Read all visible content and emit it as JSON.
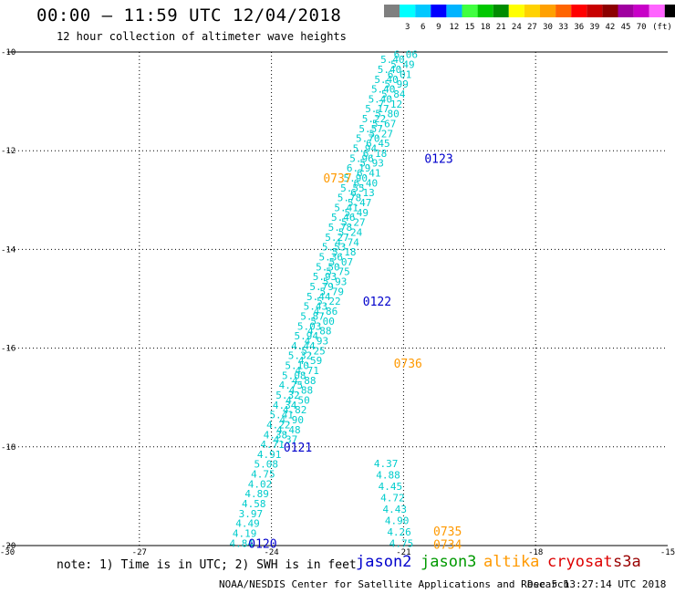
{
  "header": {
    "title": "00:00 – 11:59 UTC 12/04/2018",
    "subtitle": "12 hour collection of altimeter wave heights"
  },
  "colorbar": {
    "unit_label": "(ft)",
    "colors": [
      "#7f7f7f",
      "#00ffff",
      "#00c8ff",
      "#0000ff",
      "#00b4ff",
      "#40ff40",
      "#00c800",
      "#008c00",
      "#ffff00",
      "#ffd200",
      "#ffa000",
      "#ff6400",
      "#ff0000",
      "#c80000",
      "#8c0000",
      "#a000a0",
      "#c800c8",
      "#ff64ff",
      "#000000"
    ],
    "labels": [
      "3",
      "6",
      "9",
      "12",
      "15",
      "18",
      "21",
      "24",
      "27",
      "30",
      "33",
      "36",
      "39",
      "42",
      "45",
      "70"
    ]
  },
  "footer": {
    "note": "note: 1) Time is in UTC; 2) SWH is in feet",
    "credit": "NOAA/NESDIS Center for Satellite Applications and Research",
    "timestamp": "Dec  5 13:27:14 UTC 2018"
  },
  "legend": [
    {
      "name": "jason2",
      "color": "#0000cc"
    },
    {
      "name": "jason3",
      "color": "#009900"
    },
    {
      "name": "altika",
      "color": "#ff9900"
    },
    {
      "name": "cryosat",
      "color": "#dd0000"
    },
    {
      "name": "s3a",
      "color": "#990000"
    }
  ],
  "chart_data": {
    "type": "scatter",
    "title": "00:00 – 11:59 UTC 12/04/2018",
    "subtitle": "12 hour collection of altimeter wave heights",
    "xlim": [
      -30,
      -15
    ],
    "ylim": [
      -20,
      -10
    ],
    "xticks": [
      "-30",
      "-27",
      "-24",
      "-21",
      "-18",
      "-15"
    ],
    "yticks": [
      "-10",
      "-12",
      "-14",
      "-16",
      "-18",
      "-20"
    ],
    "grid": true,
    "series": [
      {
        "name": "altika",
        "color": "#00cccc",
        "x": [
          -24.68,
          -24.61,
          -24.54,
          -24.47,
          -24.4,
          -24.33,
          -24.26,
          -24.19,
          -24.12,
          -24.05,
          -23.98,
          -23.91,
          -23.84,
          -23.77,
          -23.7,
          -23.63,
          -23.56,
          -23.49,
          -23.42,
          -23.35,
          -23.28,
          -23.21,
          -23.14,
          -23.07,
          -23.0,
          -22.93,
          -22.86,
          -22.79,
          -22.72,
          -22.65,
          -22.58,
          -22.51,
          -22.44,
          -22.37,
          -22.3,
          -22.23,
          -22.16,
          -22.09,
          -22.02,
          -21.95,
          -21.88,
          -21.81,
          -21.74,
          -21.67,
          -21.6,
          -21.53,
          -21.46,
          -21.39,
          -21.32,
          -21.25
        ],
        "y": [
          -19.95,
          -19.75,
          -19.55,
          -19.35,
          -19.15,
          -18.95,
          -18.75,
          -18.55,
          -18.35,
          -18.15,
          -17.95,
          -17.75,
          -17.55,
          -17.35,
          -17.15,
          -16.95,
          -16.75,
          -16.55,
          -16.35,
          -16.15,
          -15.95,
          -15.75,
          -15.55,
          -15.35,
          -15.15,
          -14.95,
          -14.75,
          -14.55,
          -14.35,
          -14.15,
          -13.95,
          -13.75,
          -13.55,
          -13.35,
          -13.15,
          -12.95,
          -12.75,
          -12.55,
          -12.35,
          -12.15,
          -11.95,
          -11.75,
          -11.55,
          -11.35,
          -11.15,
          -10.95,
          -10.75,
          -10.55,
          -10.35,
          -10.15
        ],
        "labels": [
          "4.84",
          "4.19",
          "4.49",
          "3.97",
          "4.58",
          "4.89",
          "4.02",
          "4.75",
          "5.08",
          "4.91",
          "4.71",
          "4.38",
          "4.22",
          "5.41",
          "4.34",
          "5.32",
          "4.75",
          "5.08",
          "5.10",
          "5.32",
          "4.44",
          "5.94",
          "5.03",
          "5.87",
          "5.43",
          "5.44",
          "5.79",
          "5.93",
          "5.50",
          "5.36",
          "5.53",
          "5.27",
          "5.78",
          "5.46",
          "5.41",
          "5.78",
          "5.55",
          "5.90",
          "6.19",
          "5.96",
          "5.94",
          "5.70",
          "5.57",
          "5.22",
          "5.17",
          "5.40",
          "5.40",
          "5.40",
          "5.40",
          "5.40"
        ]
      },
      {
        "name": "altika",
        "color": "#00cccc",
        "x": [
          -20.95,
          -21.02,
          -21.09,
          -21.16,
          -21.23,
          -21.3,
          -21.37,
          -21.44,
          -21.51,
          -21.58,
          -21.65,
          -21.72,
          -21.79,
          -21.86,
          -21.93,
          -22.0,
          -22.07,
          -22.14,
          -22.21,
          -22.28,
          -22.35,
          -22.42,
          -22.49,
          -22.56,
          -22.63,
          -22.7,
          -22.77,
          -22.84,
          -22.91,
          -22.98,
          -23.05,
          -23.12,
          -23.19,
          -23.26,
          -23.33,
          -23.4,
          -23.47,
          -23.54,
          -23.61,
          -23.68
        ],
        "y": [
          -10.05,
          -10.25,
          -10.45,
          -10.65,
          -10.85,
          -11.05,
          -11.25,
          -11.45,
          -11.65,
          -11.85,
          -12.05,
          -12.25,
          -12.45,
          -12.65,
          -12.85,
          -13.05,
          -13.25,
          -13.45,
          -13.65,
          -13.85,
          -14.05,
          -14.25,
          -14.45,
          -14.65,
          -14.85,
          -15.05,
          -15.25,
          -15.45,
          -15.65,
          -15.85,
          -16.05,
          -16.25,
          -16.45,
          -16.65,
          -16.85,
          -17.05,
          -17.25,
          -17.45,
          -17.65,
          -17.85
        ],
        "labels": [
          "6.06",
          "5.49",
          "6.01",
          "5.99",
          "5.84",
          "7.12",
          "5.80",
          "5.67",
          "5.27",
          "6.45",
          "6.18",
          "5.93",
          "6.41",
          "6.40",
          "6.13",
          "5.47",
          "5.49",
          "5.27",
          "5.24",
          "4.74",
          "5.18",
          "5.07",
          "5.75",
          "5.93",
          "5.79",
          "5.22",
          "4.86",
          "5.00",
          "4.88",
          "4.93",
          "5.25",
          "4.59",
          "4.71",
          "4.88",
          "4.88",
          "4.50",
          "4.82",
          "4.90",
          "4.48",
          "4.37"
        ]
      },
      {
        "name": "altika",
        "color": "#00cccc",
        "x": [
          -21.05,
          -21.1,
          -21.15,
          -21.2,
          -21.25,
          -21.3,
          -21.35,
          -21.4
        ],
        "y": [
          -19.95,
          -19.72,
          -19.49,
          -19.26,
          -19.03,
          -18.8,
          -18.57,
          -18.34
        ],
        "labels": [
          "4.75",
          "4.26",
          "4.90",
          "4.43",
          "4.72",
          "4.45",
          "4.88",
          "4.37"
        ]
      }
    ],
    "annotations": [
      {
        "text": "0123",
        "x": -20.2,
        "y": -12.15,
        "color": "#0000cc"
      },
      {
        "text": "0737",
        "x": -22.5,
        "y": -12.55,
        "color": "#ff9900"
      },
      {
        "text": "0122",
        "x": -21.6,
        "y": -15.05,
        "color": "#0000cc"
      },
      {
        "text": "0736",
        "x": -20.9,
        "y": -16.3,
        "color": "#ff9900"
      },
      {
        "text": "0121",
        "x": -23.4,
        "y": -18.0,
        "color": "#0000cc"
      },
      {
        "text": "0735",
        "x": -20.0,
        "y": -19.7,
        "color": "#ff9900"
      },
      {
        "text": "0734",
        "x": -20.0,
        "y": -19.97,
        "color": "#ff9900"
      },
      {
        "text": "0120",
        "x": -24.2,
        "y": -19.95,
        "color": "#0000cc"
      }
    ]
  }
}
